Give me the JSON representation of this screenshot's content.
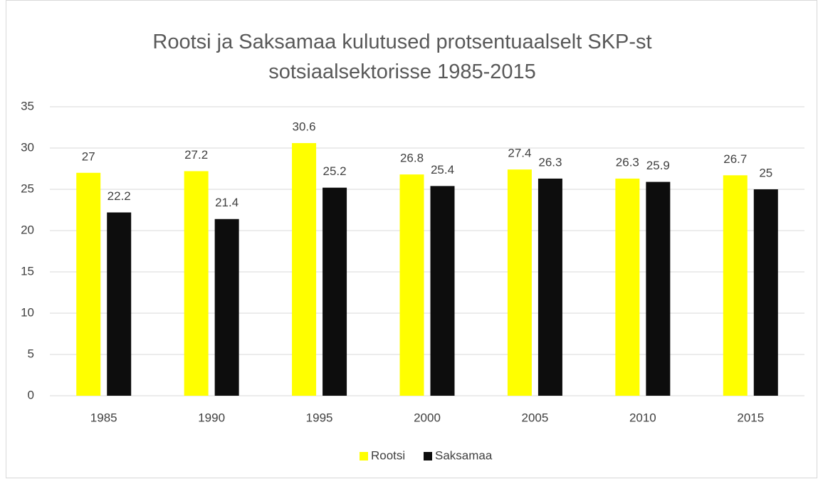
{
  "chart_data": {
    "type": "bar",
    "title": "Rootsi ja Saksamaa kulutused protsentuaalselt SKP-st sotsiaalsektorisse 1985-2015",
    "categories": [
      "1985",
      "1990",
      "1995",
      "2000",
      "2005",
      "2010",
      "2015"
    ],
    "series": [
      {
        "name": "Rootsi",
        "color": "#ffff00",
        "values": [
          27,
          27.2,
          30.6,
          26.8,
          27.4,
          26.3,
          26.7
        ]
      },
      {
        "name": "Saksamaa",
        "color": "#0d0d0d",
        "values": [
          22.2,
          21.4,
          25.2,
          25.4,
          26.3,
          25.9,
          25
        ]
      }
    ],
    "ylim": [
      0,
      35
    ],
    "yticks": [
      0,
      5,
      10,
      15,
      20,
      25,
      30,
      35
    ],
    "grid": true,
    "legend": "bottom"
  }
}
